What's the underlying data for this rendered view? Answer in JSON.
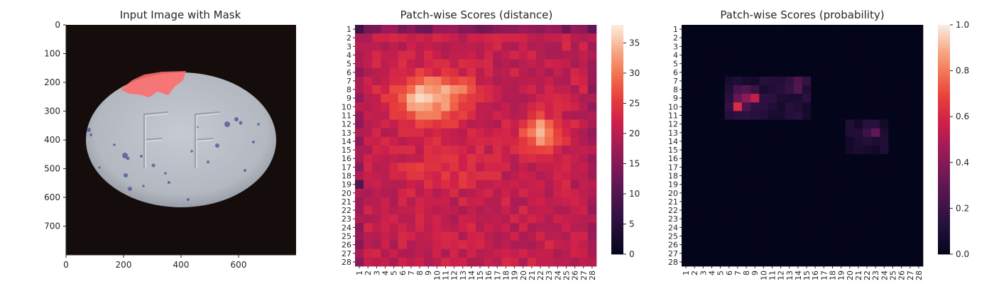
{
  "chart_data": [
    {
      "type": "image",
      "title": "Input Image with Mask",
      "xlabel": "",
      "ylabel": "",
      "xlim": [
        0,
        800
      ],
      "ylim": [
        800,
        0
      ],
      "xticks": [
        0,
        200,
        400,
        600
      ],
      "yticks": [
        0,
        100,
        200,
        300,
        400,
        500,
        600,
        700
      ],
      "content": {
        "tablet_embossed_text": "FF",
        "tablet_ellipse": {
          "cx": 400,
          "cy": 400,
          "rx": 330,
          "ry": 235
        },
        "mask_region": {
          "x_range": [
            190,
            410
          ],
          "y_range": [
            160,
            255
          ]
        }
      }
    },
    {
      "type": "heatmap",
      "title": "Patch-wise Scores (distance)",
      "xlabel": "",
      "ylabel": "",
      "rows": 28,
      "cols": 28,
      "tick_labels": [
        "1",
        "2",
        "3",
        "4",
        "5",
        "6",
        "7",
        "8",
        "9",
        "10",
        "11",
        "12",
        "13",
        "14",
        "15",
        "16",
        "17",
        "18",
        "19",
        "20",
        "21",
        "22",
        "23",
        "24",
        "25",
        "26",
        "27",
        "28"
      ],
      "vmin": 0,
      "vmax": 38,
      "colorbar_ticks": [
        0,
        5,
        10,
        15,
        20,
        25,
        30,
        35
      ],
      "colormap": "rocket",
      "approximate_values": {
        "background_level": 21,
        "top_row_min": 10,
        "hotspot_1": {
          "rows": [
            7,
            11
          ],
          "cols": [
            6,
            14
          ],
          "peak": 38
        },
        "hotspot_2": {
          "rows": [
            12,
            15
          ],
          "cols": [
            20,
            24
          ],
          "peak": 36
        },
        "low_values": {
          "row_1_col_1": 8,
          "row_19_col_1": 10
        }
      }
    },
    {
      "type": "heatmap",
      "title": "Patch-wise Scores (probability)",
      "xlabel": "",
      "ylabel": "",
      "rows": 28,
      "cols": 28,
      "tick_labels": [
        "1",
        "2",
        "3",
        "4",
        "5",
        "6",
        "7",
        "8",
        "9",
        "10",
        "11",
        "12",
        "13",
        "14",
        "15",
        "16",
        "17",
        "18",
        "19",
        "20",
        "21",
        "22",
        "23",
        "24",
        "25",
        "26",
        "27",
        "28"
      ],
      "vmin": 0.0,
      "vmax": 1.0,
      "colorbar_ticks": [
        "0.0",
        "0.2",
        "0.4",
        "0.6",
        "0.8",
        "1.0"
      ],
      "colormap": "rocket",
      "approximate_values": {
        "background_level": 0.0,
        "cluster_1": {
          "rows": [
            7,
            11
          ],
          "cols": [
            6,
            15
          ],
          "peak": 0.62,
          "peak_cell": [
            10,
            7
          ]
        },
        "cluster_2": {
          "rows": [
            12,
            15
          ],
          "cols": [
            20,
            24
          ],
          "peak": 0.3,
          "peak_cell": [
            13,
            23
          ]
        }
      }
    }
  ],
  "colors": {
    "cmap_dark": "#03051a",
    "cmap_mid": "#e13342",
    "cmap_light": "#faebdd",
    "tablet": "#b9bec6",
    "mask": "#ff6b6b",
    "photo_bg": "#140d0b"
  }
}
